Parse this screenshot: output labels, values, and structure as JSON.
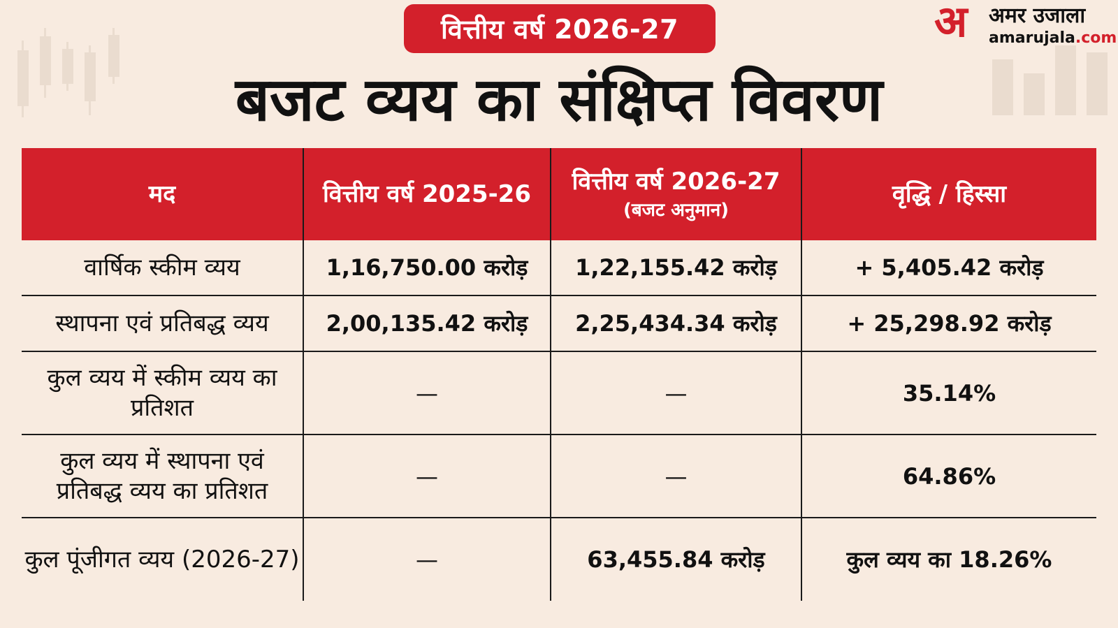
{
  "badge": "वित्तीय वर्ष 2026-27",
  "logo": {
    "mark": "अ",
    "hindi": "अमर उजाला",
    "url_main": "amarujala",
    "url_tld": ".com"
  },
  "title": "बजट व्यय का संक्षिप्त विवरण",
  "table": {
    "headers": {
      "item": "मद",
      "fy2526": "वित्तीय वर्ष 2025-26",
      "fy2627": "वित्तीय वर्ष 2026-27",
      "fy2627_sub": "(बजट अनुमान)",
      "growth": "वृद्धि / हिस्सा"
    },
    "rows": [
      {
        "item": "वार्षिक स्कीम व्यय",
        "fy2526": "1,16,750.00 करोड़",
        "fy2627": "1,22,155.42 करोड़",
        "growth": "+ 5,405.42 करोड़"
      },
      {
        "item": "स्थापना एवं प्रतिबद्ध व्यय",
        "fy2526": "2,00,135.42 करोड़",
        "fy2627": "2,25,434.34 करोड़",
        "growth": "+ 25,298.92 करोड़"
      },
      {
        "item": "कुल व्यय में स्कीम व्यय का प्रतिशत",
        "fy2526": "—",
        "fy2627": "—",
        "growth": "35.14%"
      },
      {
        "item": "कुल व्यय में स्थापना एवं प्रतिबद्ध व्यय का प्रतिशत",
        "fy2526": "—",
        "fy2627": "—",
        "growth": "64.86%"
      },
      {
        "item": "कुल पूंजीगत व्यय (2026-27)",
        "fy2526": "—",
        "fy2627": "63,455.84 करोड़",
        "growth": "कुल व्यय का 18.26%"
      }
    ]
  }
}
